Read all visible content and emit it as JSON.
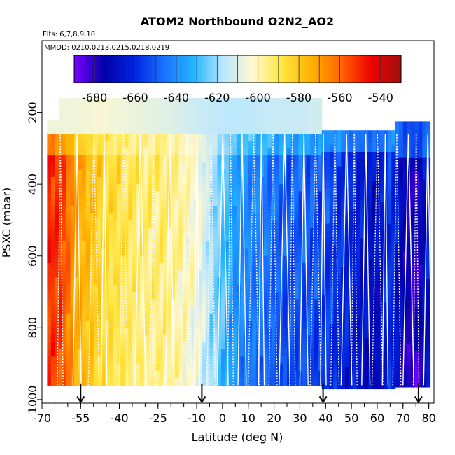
{
  "chart_data": {
    "type": "heatmap",
    "title": "ATOM2 Northbound O2N2_AO2",
    "annotations": {
      "flights": "Flts: 6,7,8,9,10",
      "dates": "MMDD: 0210,0213,0215,0218,0219"
    },
    "xlabel": "Latitude (deg N)",
    "ylabel": "PSXC (mbar)",
    "xlim": [
      -70,
      82
    ],
    "ylim": [
      1010,
      0
    ],
    "x_ticks": [
      {
        "value": -70,
        "label": "-70"
      },
      {
        "value": -55,
        "label": "-55"
      },
      {
        "value": -40,
        "label": "-40"
      },
      {
        "value": -25,
        "label": "-25"
      },
      {
        "value": -10,
        "label": "-10"
      },
      {
        "value": 0,
        "label": "0"
      },
      {
        "value": 10,
        "label": "10"
      },
      {
        "value": 20,
        "label": "20"
      },
      {
        "value": 30,
        "label": "30"
      },
      {
        "value": 40,
        "label": "40"
      },
      {
        "value": 50,
        "label": "50"
      },
      {
        "value": 60,
        "label": "60"
      },
      {
        "value": 70,
        "label": "70"
      },
      {
        "value": 80,
        "label": "80"
      }
    ],
    "y_ticks": [
      {
        "value": 200,
        "label": "200"
      },
      {
        "value": 400,
        "label": "400"
      },
      {
        "value": 600,
        "label": "600"
      },
      {
        "value": 800,
        "label": "800"
      },
      {
        "value": 1000,
        "label": "1000"
      }
    ],
    "colorbar": {
      "min": -690,
      "max": -530,
      "ticks": [
        {
          "value": -680,
          "label": "-680"
        },
        {
          "value": -660,
          "label": "-660"
        },
        {
          "value": -640,
          "label": "-640"
        },
        {
          "value": -620,
          "label": "-620"
        },
        {
          "value": -600,
          "label": "-600"
        },
        {
          "value": -580,
          "label": "-580"
        },
        {
          "value": -560,
          "label": "-560"
        },
        {
          "value": -540,
          "label": "-540"
        }
      ],
      "colors": [
        "#7a00ff",
        "#0000a8",
        "#0022dd",
        "#1a70ff",
        "#22b4ff",
        "#b8e6ff",
        "#fff8d0",
        "#ffe640",
        "#ffb000",
        "#ff6400",
        "#f00000",
        "#a01010"
      ]
    },
    "lat_profile": [
      {
        "lat": -68,
        "value": -548
      },
      {
        "lat": -62,
        "value": -552
      },
      {
        "lat": -57,
        "value": -570
      },
      {
        "lat": -52,
        "value": -576
      },
      {
        "lat": -45,
        "value": -584
      },
      {
        "lat": -38,
        "value": -588
      },
      {
        "lat": -30,
        "value": -592
      },
      {
        "lat": -22,
        "value": -592
      },
      {
        "lat": -15,
        "value": -598
      },
      {
        "lat": -9,
        "value": -604
      },
      {
        "lat": -4,
        "value": -618
      },
      {
        "lat": 0,
        "value": -626
      },
      {
        "lat": 5,
        "value": -636
      },
      {
        "lat": 10,
        "value": -640
      },
      {
        "lat": 15,
        "value": -642
      },
      {
        "lat": 20,
        "value": -646
      },
      {
        "lat": 25,
        "value": -650
      },
      {
        "lat": 30,
        "value": -648
      },
      {
        "lat": 35,
        "value": -650
      },
      {
        "lat": 40,
        "value": -652
      },
      {
        "lat": 45,
        "value": -656
      },
      {
        "lat": 50,
        "value": -660
      },
      {
        "lat": 55,
        "value": -664
      },
      {
        "lat": 60,
        "value": -668
      },
      {
        "lat": 65,
        "value": -654
      },
      {
        "lat": 70,
        "value": -672
      },
      {
        "lat": 75,
        "value": -678
      },
      {
        "lat": 80,
        "value": -662
      }
    ],
    "upper_profile": [
      {
        "lat": -68,
        "value": -606
      },
      {
        "lat": -58,
        "value": -606
      },
      {
        "lat": -48,
        "value": -604
      },
      {
        "lat": -38,
        "value": -606
      },
      {
        "lat": -28,
        "value": -608
      },
      {
        "lat": -18,
        "value": -610
      },
      {
        "lat": -8,
        "value": -614
      },
      {
        "lat": 0,
        "value": -616
      },
      {
        "lat": 10,
        "value": -616
      },
      {
        "lat": 20,
        "value": -614
      },
      {
        "lat": 30,
        "value": -614
      },
      {
        "lat": 38,
        "value": -612
      }
    ],
    "flight_start_arrows": [
      -55,
      -8,
      39,
      76
    ]
  }
}
